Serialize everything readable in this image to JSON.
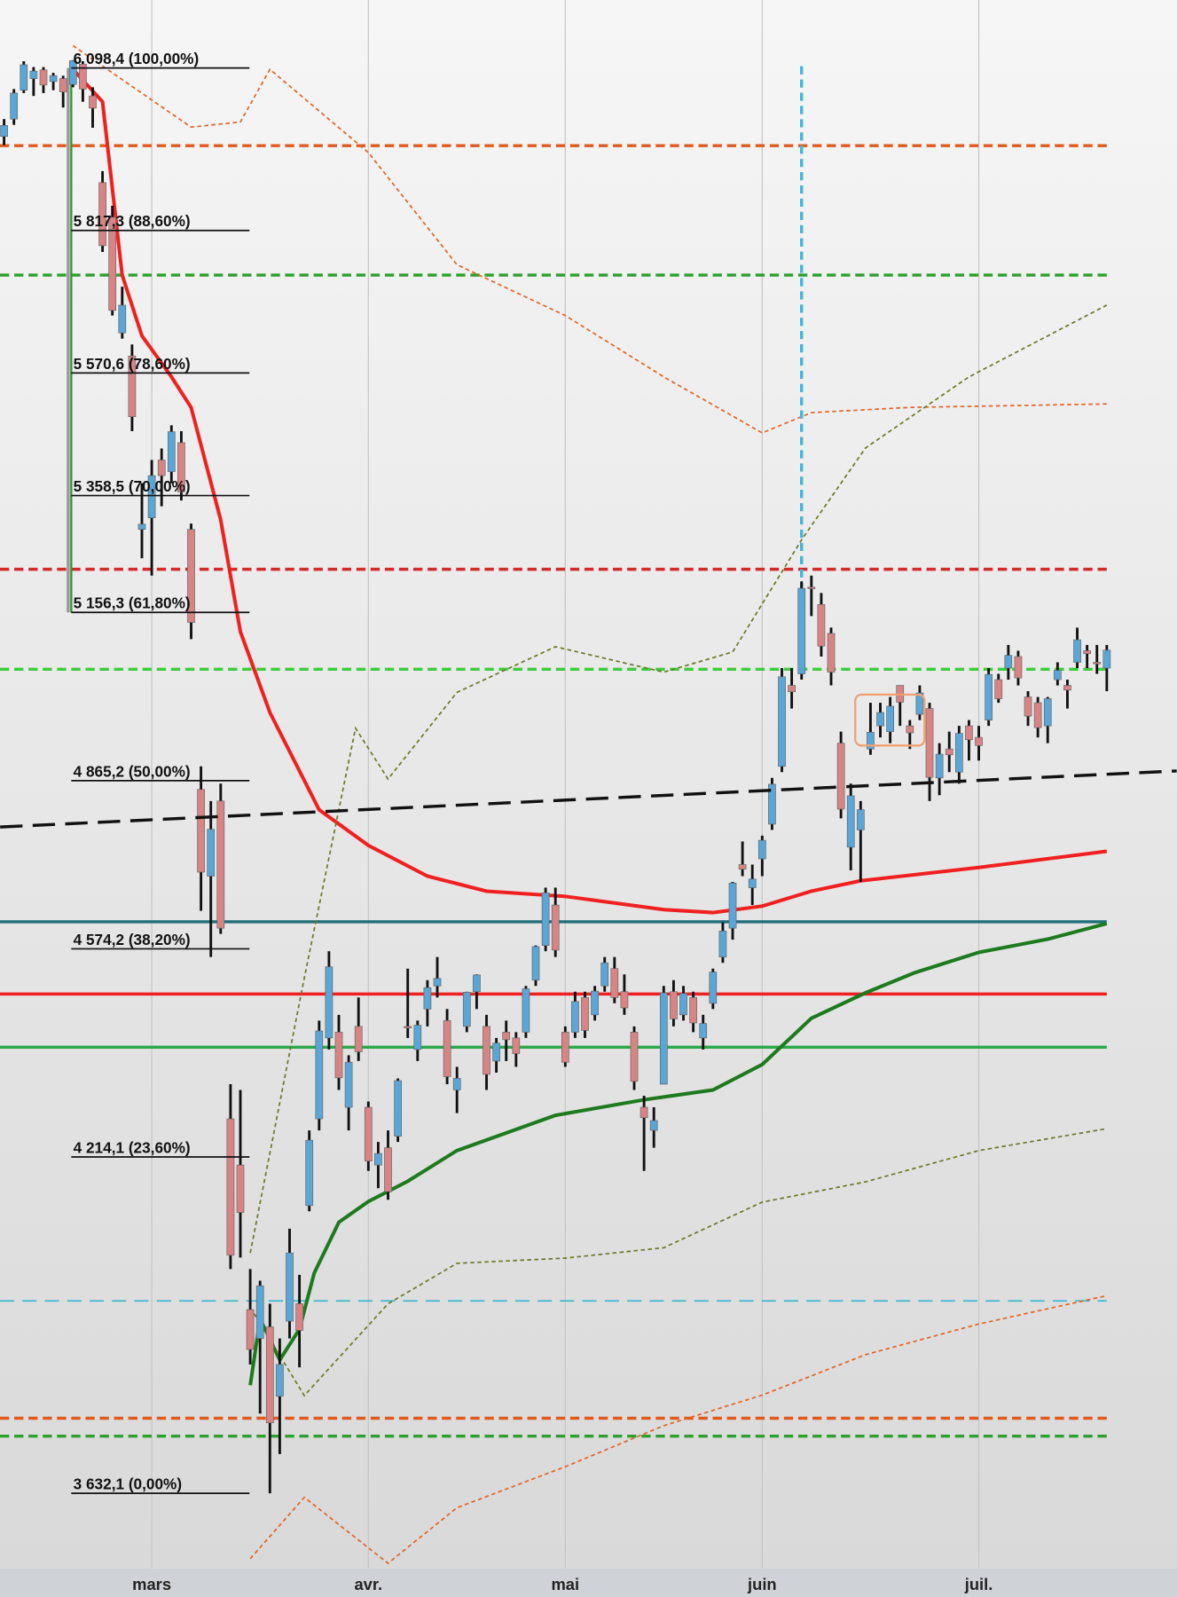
{
  "chart_data": {
    "type": "candlestick",
    "ylim": [
      3502,
      6216
    ],
    "categories": [
      null,
      null,
      null,
      null,
      null,
      null,
      null,
      null,
      null,
      null,
      null,
      null,
      null,
      null,
      null,
      "mars",
      null,
      null,
      null,
      null,
      null,
      null,
      null,
      null,
      null,
      null,
      null,
      null,
      null,
      null,
      null,
      null,
      null,
      null,
      null,
      null,
      null,
      "avr.",
      null,
      null,
      null,
      null,
      null,
      null,
      null,
      null,
      null,
      null,
      null,
      null,
      null,
      null,
      null,
      null,
      null,
      null,
      null,
      "mai",
      null,
      null,
      null,
      null,
      null,
      null,
      null,
      null,
      null,
      null,
      null,
      null,
      null,
      null,
      null,
      null,
      null,
      null,
      null,
      "juin",
      null,
      null,
      null,
      null,
      null,
      null,
      null,
      null,
      null,
      null,
      null,
      null,
      null,
      null,
      null,
      null,
      null,
      null,
      null,
      null,
      null,
      "juil.",
      null,
      null,
      null,
      null,
      null,
      null,
      null,
      null,
      null,
      null,
      null,
      null,
      null
    ],
    "up_color": "#5aa6d6",
    "down_color": "#d98484",
    "ohlc": [
      [
        5980,
        6010,
        5965,
        5999
      ],
      [
        6010,
        6062,
        6000,
        6055
      ],
      [
        6060,
        6110,
        6055,
        6104
      ],
      [
        6080,
        6100,
        6050,
        6093
      ],
      [
        6095,
        6100,
        6055,
        6069
      ],
      [
        6075,
        6090,
        6060,
        6085
      ],
      [
        6080,
        6085,
        6030,
        6057
      ],
      [
        6070,
        6112,
        6065,
        6111
      ],
      [
        6105,
        6110,
        6040,
        6062
      ],
      [
        6050,
        6065,
        5995,
        6029
      ],
      [
        5900,
        5920,
        5780,
        5791
      ],
      [
        5840,
        5860,
        5670,
        5679
      ],
      [
        5640,
        5720,
        5630,
        5688
      ],
      [
        5600,
        5620,
        5470,
        5495
      ],
      [
        5300,
        5380,
        5250,
        5309
      ],
      [
        5320,
        5420,
        5220,
        5393
      ],
      [
        5420,
        5440,
        5340,
        5393
      ],
      [
        5400,
        5480,
        5380,
        5469
      ],
      [
        5450,
        5470,
        5350,
        5365
      ],
      [
        5300,
        5310,
        5110,
        5139
      ],
      [
        4850,
        4890,
        4640,
        4707
      ],
      [
        4700,
        4830,
        4560,
        4781
      ],
      [
        4830,
        4860,
        4600,
        4610
      ],
      [
        4280,
        4340,
        4020,
        4044
      ],
      [
        4200,
        4330,
        4040,
        4118
      ],
      [
        3950,
        4020,
        3855,
        3881
      ],
      [
        3900,
        4000,
        3770,
        3991
      ],
      [
        3920,
        3960,
        3632,
        3754
      ],
      [
        3800,
        3900,
        3700,
        3855
      ],
      [
        3930,
        4090,
        3900,
        4048
      ],
      [
        3960,
        4010,
        3850,
        3914
      ],
      [
        4130,
        4260,
        4120,
        4243
      ],
      [
        4280,
        4450,
        4260,
        4432
      ],
      [
        4420,
        4570,
        4400,
        4543
      ],
      [
        4430,
        4460,
        4330,
        4351
      ],
      [
        4300,
        4390,
        4260,
        4378
      ],
      [
        4440,
        4490,
        4380,
        4396
      ],
      [
        4300,
        4310,
        4190,
        4207
      ],
      [
        4200,
        4240,
        4160,
        4220
      ],
      [
        4230,
        4260,
        4140,
        4154
      ],
      [
        4250,
        4350,
        4240,
        4346
      ],
      [
        4440,
        4540,
        4420,
        4438
      ],
      [
        4400,
        4450,
        4380,
        4442
      ],
      [
        4470,
        4520,
        4440,
        4507
      ],
      [
        4510,
        4560,
        4490,
        4523
      ],
      [
        4450,
        4470,
        4340,
        4353
      ],
      [
        4330,
        4370,
        4290,
        4350
      ],
      [
        4440,
        4500,
        4430,
        4499
      ],
      [
        4500,
        4530,
        4470,
        4529
      ],
      [
        4440,
        4460,
        4330,
        4357
      ],
      [
        4380,
        4420,
        4360,
        4411
      ],
      [
        4430,
        4450,
        4380,
        4417
      ],
      [
        4420,
        4430,
        4370,
        4393
      ],
      [
        4430,
        4510,
        4420,
        4505
      ],
      [
        4520,
        4580,
        4510,
        4578
      ],
      [
        4580,
        4680,
        4570,
        4671
      ],
      [
        4650,
        4680,
        4560,
        4572
      ],
      [
        4430,
        4440,
        4370,
        4378
      ],
      [
        4430,
        4500,
        4420,
        4483
      ],
      [
        4490,
        4500,
        4420,
        4433
      ],
      [
        4460,
        4510,
        4450,
        4501
      ],
      [
        4510,
        4560,
        4500,
        4550
      ],
      [
        4540,
        4560,
        4480,
        4490
      ],
      [
        4500,
        4530,
        4460,
        4472
      ],
      [
        4430,
        4440,
        4330,
        4345
      ],
      [
        4300,
        4320,
        4190,
        4282
      ],
      [
        4260,
        4300,
        4230,
        4277
      ],
      [
        4340,
        4510,
        4340,
        4498
      ],
      [
        4500,
        4520,
        4440,
        4453
      ],
      [
        4460,
        4510,
        4450,
        4497
      ],
      [
        4490,
        4500,
        4430,
        4446
      ],
      [
        4420,
        4460,
        4400,
        4445
      ],
      [
        4480,
        4540,
        4470,
        4534
      ],
      [
        4560,
        4620,
        4550,
        4605
      ],
      [
        4610,
        4690,
        4590,
        4688
      ],
      [
        4720,
        4760,
        4700,
        4712
      ],
      [
        4680,
        4720,
        4650,
        4695
      ],
      [
        4730,
        4770,
        4700,
        4762
      ],
      [
        4790,
        4870,
        4780,
        4859
      ],
      [
        4890,
        5060,
        4880,
        5045
      ],
      [
        5030,
        5060,
        4990,
        5019
      ],
      [
        5050,
        5210,
        5040,
        5198
      ],
      [
        5200,
        5220,
        5150,
        5199
      ],
      [
        5170,
        5190,
        5080,
        5098
      ],
      [
        5120,
        5130,
        5030,
        5053
      ],
      [
        4930,
        4950,
        4800,
        4816
      ],
      [
        4750,
        4860,
        4710,
        4839
      ],
      [
        4780,
        4830,
        4690,
        4815
      ],
      [
        4920,
        5000,
        4910,
        4949
      ],
      [
        4960,
        5000,
        4940,
        4983
      ],
      [
        4950,
        5010,
        4930,
        4994
      ],
      [
        5030,
        5030,
        4960,
        5001
      ],
      [
        4960,
        4970,
        4920,
        4948
      ],
      [
        4980,
        5030,
        4970,
        5017
      ],
      [
        4990,
        5000,
        4830,
        4871
      ],
      [
        4870,
        4930,
        4840,
        4911
      ],
      [
        4920,
        4950,
        4880,
        4910
      ],
      [
        4880,
        4960,
        4860,
        4947
      ],
      [
        4960,
        4970,
        4900,
        4936
      ],
      [
        4940,
        4960,
        4900,
        4926
      ],
      [
        4970,
        5060,
        4960,
        5049
      ],
      [
        5040,
        5050,
        5000,
        5007
      ],
      [
        5060,
        5100,
        5040,
        5082
      ],
      [
        5080,
        5090,
        5030,
        5043
      ],
      [
        5010,
        5020,
        4960,
        4977
      ],
      [
        5000,
        5010,
        4940,
        4957
      ],
      [
        4960,
        5010,
        4930,
        5007
      ],
      [
        5040,
        5070,
        5030,
        5056
      ],
      [
        5030,
        5040,
        4990,
        5022
      ],
      [
        5070,
        5130,
        5060,
        5109
      ],
      [
        5090,
        5100,
        5060,
        5085
      ],
      [
        5070,
        5100,
        5050,
        5069
      ],
      [
        5060,
        5100,
        5020,
        5091
      ]
    ],
    "fib_levels": [
      {
        "value": 6098.4,
        "label": "6 098,4 (100,00%)"
      },
      {
        "value": 5817.3,
        "label": "5 817,3 (88,60%)"
      },
      {
        "value": 5570.6,
        "label": "5 570,6 (78,60%)"
      },
      {
        "value": 5358.5,
        "label": "5 358,5 (70,00%)"
      },
      {
        "value": 5156.3,
        "label": "5 156,3 (61,80%)"
      },
      {
        "value": 4865.2,
        "label": "4 865,2 (50,00%)"
      },
      {
        "value": 4574.2,
        "label": "4 574,2 (38,20%)"
      },
      {
        "value": 4214.1,
        "label": "4 214,1 (23,60%)"
      },
      {
        "value": 3632.1,
        "label": "3 632,1 (0,00%)"
      }
    ],
    "levels": [
      {
        "value": 5964,
        "color": "#e05a1e",
        "style": "dash"
      },
      {
        "value": 5740,
        "color": "#2ea02e",
        "style": "dash"
      },
      {
        "value": 5231,
        "color": "#d42a2a",
        "style": "dash"
      },
      {
        "value": 5058,
        "color": "#3ccc3c",
        "style": "dash"
      },
      {
        "value": 4621,
        "color": "#1f6f7a",
        "style": "solid"
      },
      {
        "value": 4496,
        "color": "#f02020",
        "style": "solid"
      },
      {
        "value": 4404,
        "color": "#2aa84a",
        "style": "solid"
      },
      {
        "value": 3965,
        "color": "#3fb8d0",
        "style": "longdash"
      },
      {
        "value": 3762,
        "color": "#e05a1e",
        "style": "dash"
      },
      {
        "value": 3731,
        "color": "#2ea02e",
        "style": "dash"
      }
    ],
    "trendline": {
      "x": [
        -0.4,
        119.1
      ],
      "values": [
        4785,
        4882
      ],
      "color": "#111111"
    },
    "marker_index": 81,
    "marker_color": "#3fb8e0",
    "indicators": [
      {
        "color": "#f02020",
        "width": 3.5,
        "dash": "none",
        "x": [
          7,
          10,
          12,
          14,
          17,
          19,
          22,
          24,
          27,
          32,
          37,
          43,
          49,
          57,
          67,
          72,
          77,
          82,
          87,
          99,
          112
        ],
        "values": [
          6096,
          6040,
          5740,
          5635,
          5564,
          5511,
          5317,
          5123,
          4983,
          4815,
          4753,
          4700,
          4674,
          4665,
          4642,
          4637,
          4648,
          4674,
          4692,
          4715,
          4743
        ]
      },
      {
        "color": "#1e7a1e",
        "width": 3.5,
        "dash": "none",
        "x": [
          25,
          26,
          28,
          30,
          31.5,
          34,
          37,
          41,
          46,
          56,
          65,
          72,
          77,
          82,
          87.5,
          92.5,
          99,
          106,
          112
        ],
        "values": [
          3819,
          3934,
          3863,
          3916,
          4013,
          4101,
          4137,
          4172,
          4225,
          4286,
          4313,
          4330,
          4374,
          4454,
          4498,
          4533,
          4568,
          4591,
          4618
        ]
      },
      {
        "color": "#e0662a",
        "width": 1.5,
        "dash": "4 3",
        "x": [
          7,
          19,
          24,
          27,
          37,
          46,
          57,
          67,
          77,
          82,
          92,
          112
        ],
        "values": [
          6137,
          5996,
          6005,
          6096,
          5952,
          5758,
          5670,
          5564,
          5467,
          5502,
          5511,
          5517
        ]
      },
      {
        "color": "#6b7a2a",
        "width": 1.5,
        "dash": "4 3",
        "x": [
          25,
          30.5,
          35.7,
          39,
          46,
          56,
          67,
          74,
          81,
          87.5,
          98,
          112
        ],
        "values": [
          4048,
          4524,
          4956,
          4868,
          5018,
          5097,
          5053,
          5088,
          5282,
          5441,
          5564,
          5688
        ]
      },
      {
        "color": "#6b7a2a",
        "width": 1.5,
        "dash": "4 3",
        "x": [
          25.4,
          30.5,
          39,
          46,
          57,
          67,
          77,
          87.5,
          99,
          112
        ],
        "values": [
          3943,
          3801,
          3960,
          4030,
          4039,
          4057,
          4136,
          4171,
          4225,
          4263
        ]
      },
      {
        "color": "#e0662a",
        "width": 1.5,
        "dash": "4 3",
        "x": [
          25,
          30.5,
          39,
          46,
          57,
          67,
          77,
          87.5,
          99,
          112
        ],
        "values": [
          3519,
          3625,
          3511,
          3607,
          3678,
          3749,
          3802,
          3872,
          3925,
          3974
        ]
      }
    ]
  }
}
